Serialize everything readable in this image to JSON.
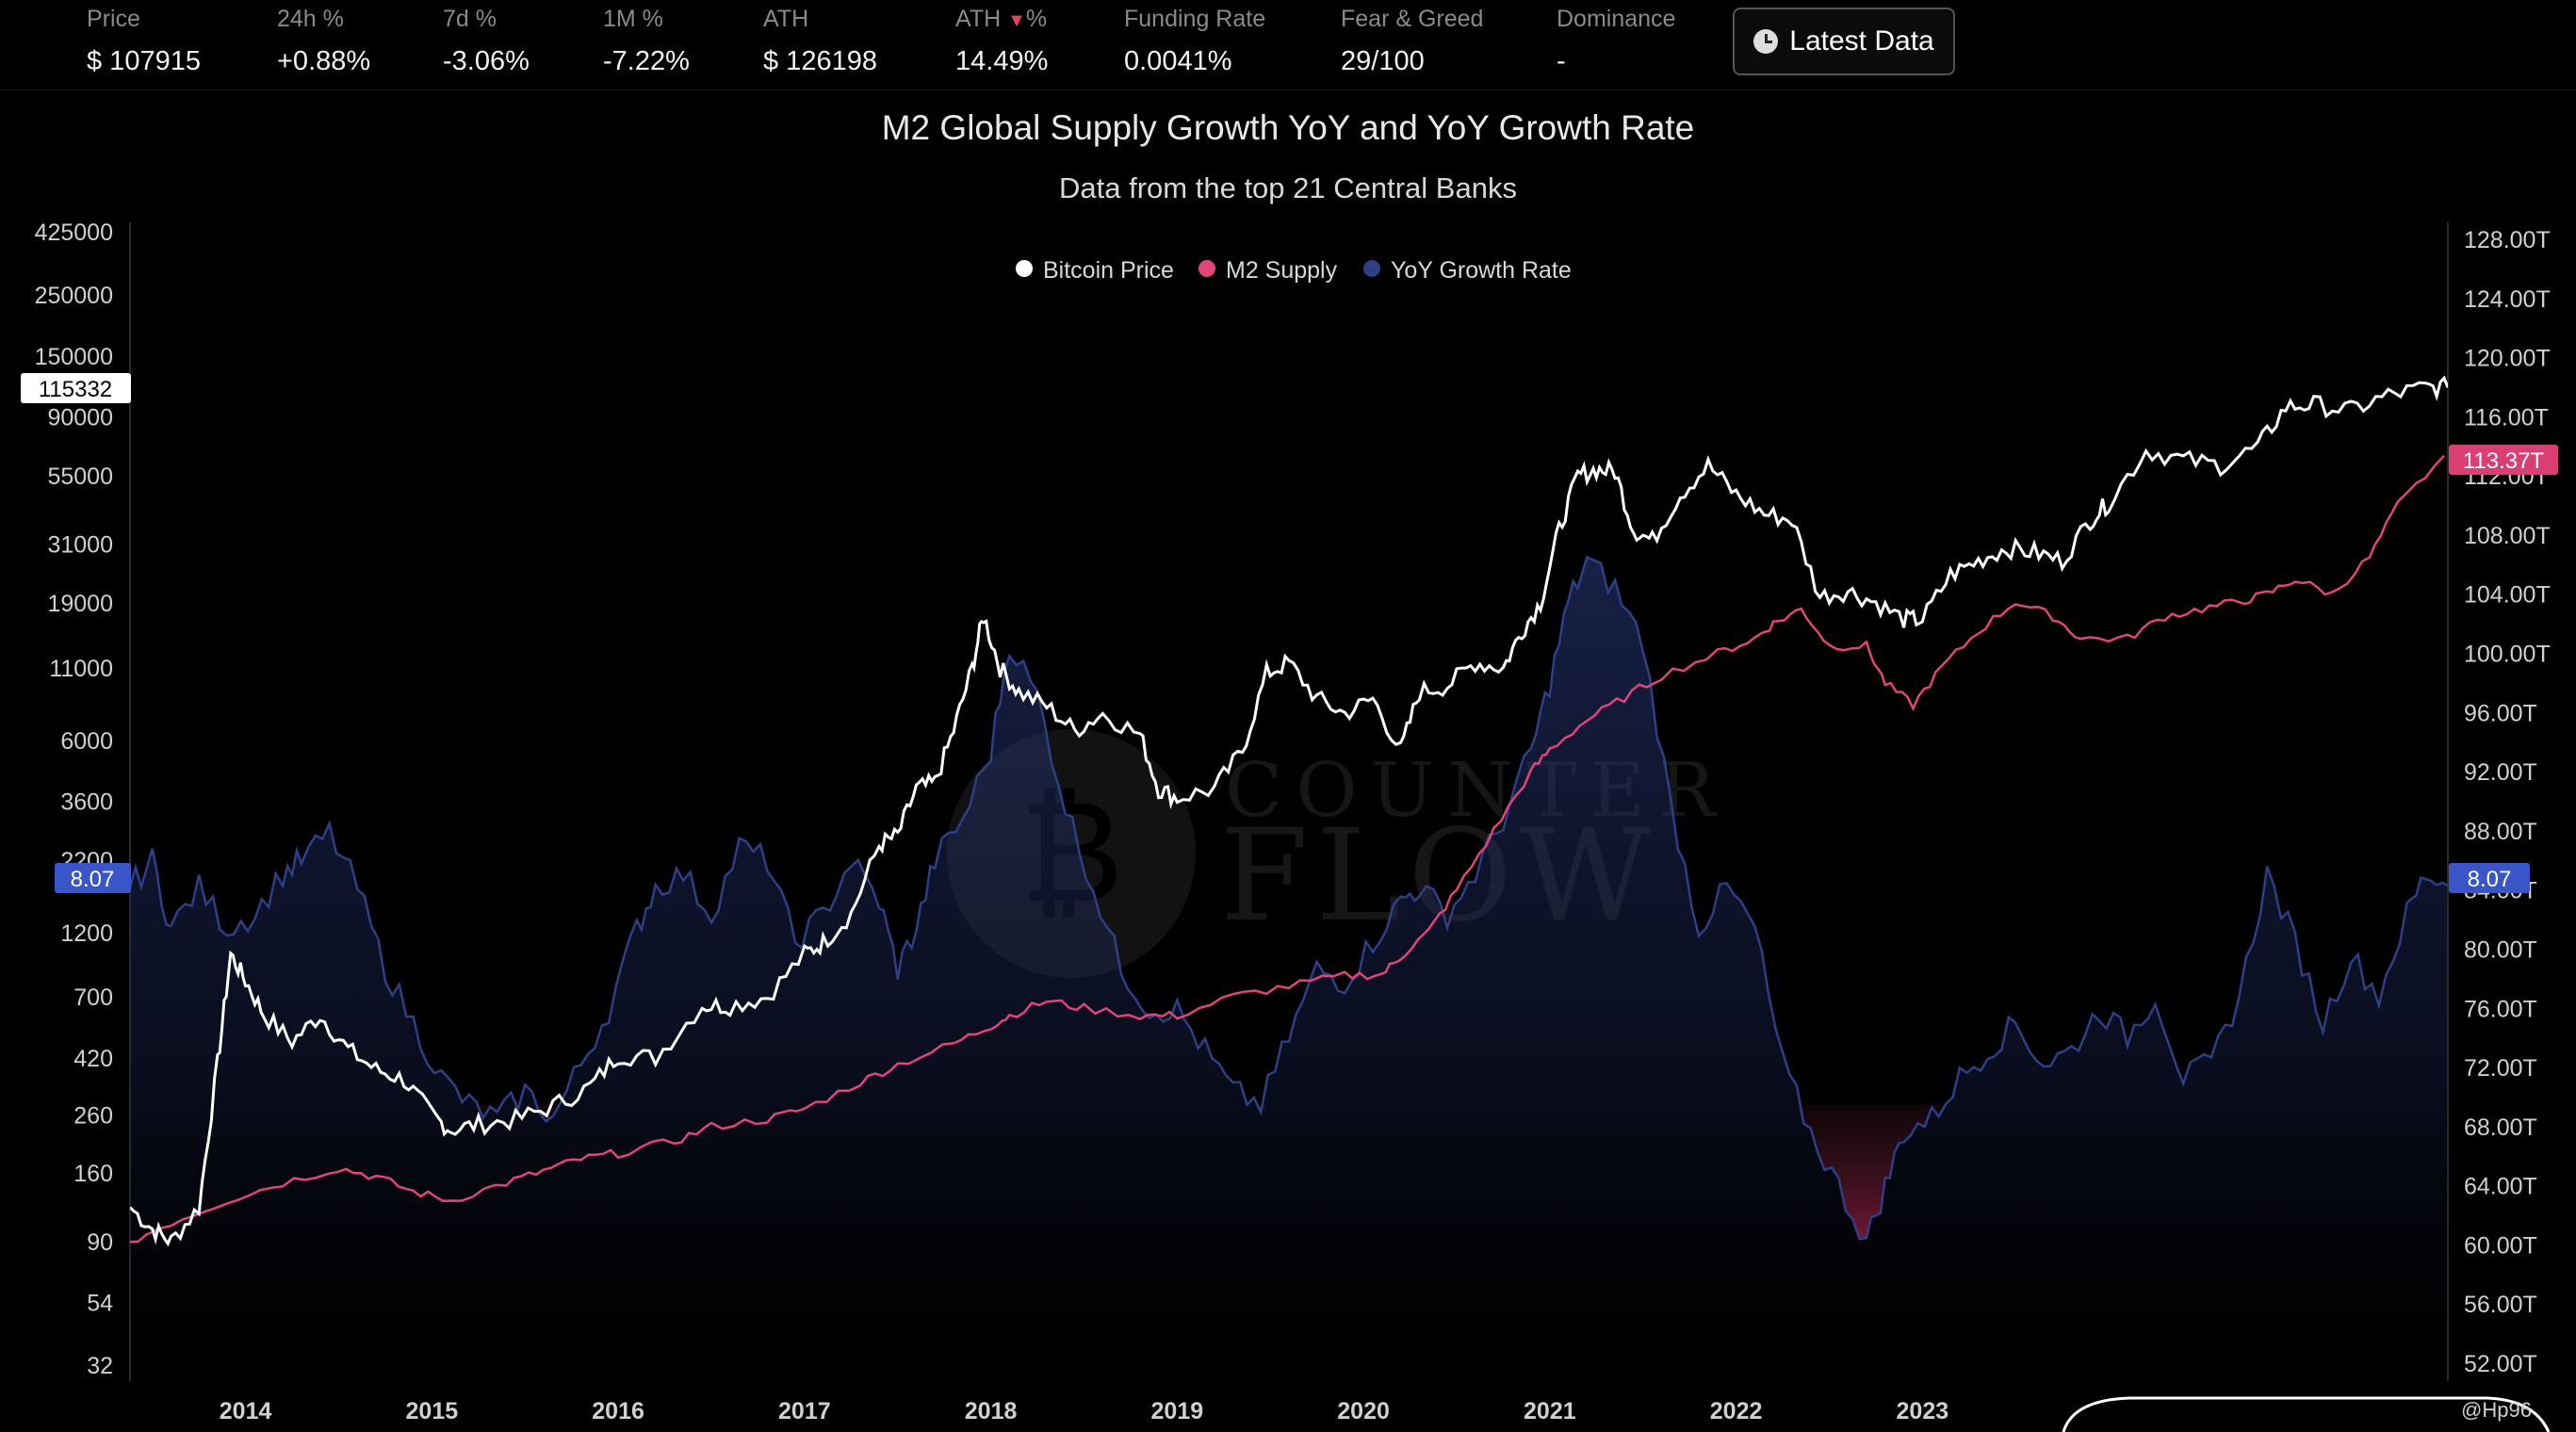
{
  "stats": {
    "items": [
      {
        "label": "Price",
        "value": "$ 107915"
      },
      {
        "label": "24h %",
        "value": "+0.88%"
      },
      {
        "label": "7d %",
        "value": "-3.06%"
      },
      {
        "label": "1M %",
        "value": "-7.22%"
      },
      {
        "label": "ATH",
        "value": "$ 126198"
      },
      {
        "label": "ATH",
        "label_suffix": "%",
        "value": "14.49%"
      },
      {
        "label": "Funding Rate",
        "value": "0.0041%"
      },
      {
        "label": "Fear & Greed",
        "value": "29/100"
      },
      {
        "label": "Dominance",
        "value": "-"
      }
    ],
    "latest_button": "Latest Data"
  },
  "colors": {
    "bitcoin": "#ffffff",
    "m2": "#e0457a",
    "yoy": "#2e3f86",
    "yoy_badge": "#3a55c8",
    "m2_badge": "#d93f73"
  },
  "watermark": {
    "line1": "COUNTER",
    "line2": "FLOW"
  },
  "credit": "@Hp96",
  "chart_data": {
    "type": "line",
    "title": "M2 Global Supply Growth YoY and YoY Growth Rate",
    "subtitle": "Data from the top 21 Central Banks",
    "legend": [
      "Bitcoin Price",
      "M2 Supply",
      "YoY Growth Rate"
    ],
    "legend_position": "top-center",
    "x_ticks": [
      "2014",
      "2015",
      "2016",
      "2017",
      "2018",
      "2019",
      "2020",
      "2021",
      "2022",
      "2023"
    ],
    "x_range": [
      2013.38,
      2025.82
    ],
    "left_axis": {
      "scale": "log",
      "ticks": [
        425000,
        250000,
        150000,
        90000,
        55000,
        31000,
        19000,
        11000,
        6000,
        3600,
        2200,
        1200,
        700,
        420,
        260,
        160,
        90,
        54,
        32
      ],
      "current_label": "115332",
      "yoy_label": "8.07"
    },
    "right_axis": {
      "unit": "T",
      "ticks": [
        "128.00T",
        "124.00T",
        "120.00T",
        "116.00T",
        "112.00T",
        "108.00T",
        "104.00T",
        "100.00T",
        "96.00T",
        "92.00T",
        "88.00T",
        "84.00T",
        "80.00T",
        "76.00T",
        "72.00T",
        "68.00T",
        "64.00T",
        "60.00T",
        "56.00T",
        "52.00T"
      ],
      "range": [
        52,
        128
      ],
      "current_m2_label": "113.37T",
      "yoy_label": "8.07"
    },
    "yoy_axis": {
      "range": [
        -6,
        24
      ]
    },
    "series": [
      {
        "name": "Bitcoin Price",
        "x": [
          2013.38,
          2013.5,
          2013.6,
          2013.75,
          2013.85,
          2013.92,
          2014.0,
          2014.1,
          2014.25,
          2014.4,
          2014.55,
          2014.7,
          2014.85,
          2015.0,
          2015.1,
          2015.25,
          2015.45,
          2015.65,
          2015.85,
          2016.0,
          2016.2,
          2016.45,
          2016.6,
          2016.8,
          2017.0,
          2017.1,
          2017.25,
          2017.4,
          2017.5,
          2017.6,
          2017.7,
          2017.8,
          2017.9,
          2017.96,
          2018.05,
          2018.15,
          2018.3,
          2018.45,
          2018.6,
          2018.8,
          2018.9,
          2019.0,
          2019.2,
          2019.35,
          2019.48,
          2019.6,
          2019.75,
          2019.9,
          2020.05,
          2020.2,
          2020.3,
          2020.45,
          2020.6,
          2020.75,
          2020.85,
          2020.95,
          2021.05,
          2021.15,
          2021.25,
          2021.35,
          2021.45,
          2021.55,
          2021.7,
          2021.85,
          2022.0,
          2022.15,
          2022.3,
          2022.45,
          2022.6,
          2022.75,
          2022.9,
          2023.0,
          2023.15,
          2023.3,
          2023.45,
          2023.6,
          2023.75,
          2023.9,
          2024.0,
          2024.2,
          2024.4,
          2024.6,
          2024.8,
          2024.95,
          2025.1,
          2025.3,
          2025.5,
          2025.7,
          2025.82
        ],
        "values": [
          120,
          100,
          90,
          120,
          400,
          1000,
          800,
          600,
          480,
          600,
          450,
          380,
          350,
          260,
          230,
          240,
          250,
          280,
          330,
          430,
          420,
          650,
          650,
          700,
          1000,
          1100,
          1400,
          2500,
          2700,
          4000,
          4200,
          6500,
          11000,
          17000,
          11000,
          9000,
          8000,
          6500,
          7500,
          6300,
          4000,
          3700,
          4000,
          5500,
          10500,
          11500,
          8500,
          7500,
          8500,
          5500,
          9000,
          9500,
          11500,
          11000,
          15000,
          19000,
          35000,
          55000,
          58000,
          57000,
          35000,
          32000,
          47000,
          60000,
          47000,
          40000,
          38000,
          20000,
          21000,
          19000,
          16500,
          16500,
          24000,
          27000,
          30000,
          29000,
          27000,
          38000,
          44000,
          68000,
          63000,
          60000,
          70000,
          98000,
          100000,
          95000,
          108000,
          115000,
          115332
        ]
      },
      {
        "name": "M2 Supply",
        "x": [
          2013.38,
          2013.6,
          2013.9,
          2014.2,
          2014.5,
          2014.7,
          2014.9,
          2015.1,
          2015.4,
          2015.6,
          2015.8,
          2016.0,
          2016.3,
          2016.5,
          2016.8,
          2017.0,
          2017.3,
          2017.5,
          2017.8,
          2018.0,
          2018.1,
          2018.3,
          2018.5,
          2018.8,
          2019.0,
          2019.3,
          2019.6,
          2019.9,
          2020.1,
          2020.2,
          2020.35,
          2020.5,
          2020.7,
          2020.9,
          2021.0,
          2021.2,
          2021.4,
          2021.6,
          2021.9,
          2022.1,
          2022.2,
          2022.35,
          2022.5,
          2022.7,
          2022.8,
          2022.95,
          2023.1,
          2023.3,
          2023.5,
          2023.7,
          2023.85,
          2024.1,
          2024.3,
          2024.5,
          2024.7,
          2024.85,
          2025.0,
          2025.2,
          2025.4,
          2025.55,
          2025.8
        ],
        "values": [
          60.2,
          61.5,
          63,
          64.2,
          65.2,
          64.6,
          63.6,
          63,
          64.2,
          65,
          65.8,
          66.2,
          67,
          68,
          68.5,
          69.2,
          71,
          72.2,
          73.6,
          74.8,
          75.5,
          76.5,
          76.0,
          75.5,
          75.5,
          76.8,
          77.5,
          78.2,
          78.3,
          79.5,
          81.2,
          84.0,
          88.0,
          92.0,
          93.5,
          95.5,
          97.0,
          98.5,
          100.0,
          101.0,
          102.0,
          103.0,
          100.5,
          100.5,
          98.0,
          96.5,
          99.0,
          101.5,
          103.5,
          102.5,
          101.0,
          101.0,
          102.5,
          103.0,
          103.5,
          104.0,
          105.0,
          104.0,
          106.5,
          110.0,
          113.37
        ]
      },
      {
        "name": "YoY Growth Rate",
        "x": [
          2013.38,
          2013.5,
          2013.6,
          2013.75,
          2013.9,
          2014.05,
          2014.2,
          2014.3,
          2014.45,
          2014.6,
          2014.75,
          2014.9,
          2015.05,
          2015.2,
          2015.35,
          2015.5,
          2015.65,
          2015.8,
          2015.95,
          2016.1,
          2016.2,
          2016.35,
          2016.5,
          2016.65,
          2016.8,
          2016.95,
          2017.1,
          2017.25,
          2017.4,
          2017.5,
          2017.6,
          2017.7,
          2017.85,
          2018.0,
          2018.1,
          2018.25,
          2018.4,
          2018.55,
          2018.7,
          2018.85,
          2019.0,
          2019.15,
          2019.3,
          2019.45,
          2019.6,
          2019.75,
          2019.9,
          2020.05,
          2020.2,
          2020.3,
          2020.45,
          2020.6,
          2020.75,
          2020.9,
          2021.0,
          2021.1,
          2021.2,
          2021.35,
          2021.5,
          2021.65,
          2021.8,
          2021.95,
          2022.1,
          2022.25,
          2022.4,
          2022.55,
          2022.7,
          2022.8,
          2022.9,
          2023.05,
          2023.2,
          2023.35,
          2023.5,
          2023.65,
          2023.8,
          2023.95,
          2024.1,
          2024.25,
          2024.4,
          2024.55,
          2024.7,
          2024.85,
          2025.0,
          2025.15,
          2025.3,
          2025.45,
          2025.6,
          2025.7,
          2025.82
        ],
        "values": [
          8.0,
          9.0,
          6.5,
          8.0,
          6.5,
          7.0,
          8.5,
          9.0,
          10.0,
          8.0,
          5.0,
          3.0,
          1.0,
          0.0,
          -0.5,
          0.5,
          -0.5,
          1.5,
          3.5,
          6.5,
          8.0,
          8.5,
          7.0,
          9.5,
          9.0,
          6.0,
          7.0,
          9.0,
          7.5,
          5.0,
          6.5,
          9.0,
          10.5,
          13.0,
          17.0,
          15.0,
          11.0,
          8.0,
          5.0,
          3.5,
          3.5,
          2.0,
          0.5,
          0.0,
          2.5,
          5.0,
          4.5,
          6.0,
          7.5,
          8.0,
          7.0,
          8.5,
          10.5,
          13.0,
          15.5,
          18.5,
          20.0,
          19.0,
          17.0,
          11.0,
          6.5,
          8.0,
          6.5,
          1.5,
          -1.0,
          -3.0,
          -5.0,
          -3.0,
          -1.0,
          -0.5,
          1.0,
          2.0,
          3.0,
          1.5,
          2.0,
          3.5,
          2.5,
          4.0,
          1.0,
          1.5,
          4.0,
          8.5,
          6.0,
          3.0,
          5.5,
          4.0,
          7.0,
          8.5,
          8.07
        ]
      }
    ]
  }
}
